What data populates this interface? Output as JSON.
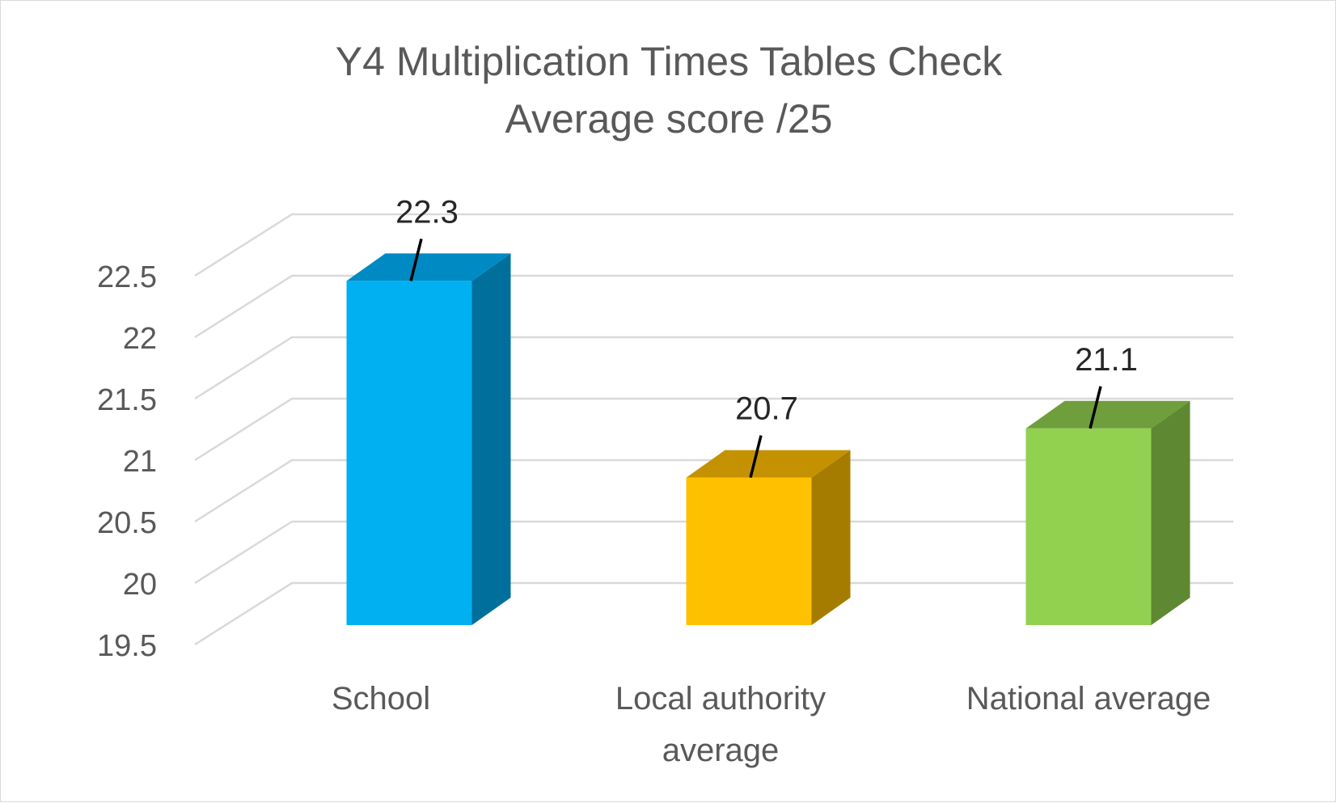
{
  "chart_data": {
    "type": "bar",
    "title": "Y4 Multiplication Times Tables Check",
    "subtitle": "Average score /25",
    "xlabel": "",
    "ylabel": "",
    "ylim": [
      19.5,
      22.5
    ],
    "yticks": [
      "19.5",
      "20",
      "20.5",
      "21",
      "21.5",
      "22",
      "22.5"
    ],
    "grid": true,
    "legend": "none",
    "three_d": true,
    "categories": [
      {
        "lines": [
          "School"
        ]
      },
      {
        "lines": [
          "Local authority",
          "average"
        ]
      },
      {
        "lines": [
          "National average"
        ]
      }
    ],
    "values": [
      22.3,
      20.7,
      21.1
    ],
    "data_labels": [
      "22.3",
      "20.7",
      "21.1"
    ],
    "colors": [
      {
        "front": "#00b0f0",
        "top": "#008ac4",
        "side": "#006f9c"
      },
      {
        "front": "#ffc000",
        "top": "#c49200",
        "side": "#a67c00"
      },
      {
        "front": "#92d050",
        "top": "#6f9e3c",
        "side": "#5e8832"
      }
    ]
  }
}
